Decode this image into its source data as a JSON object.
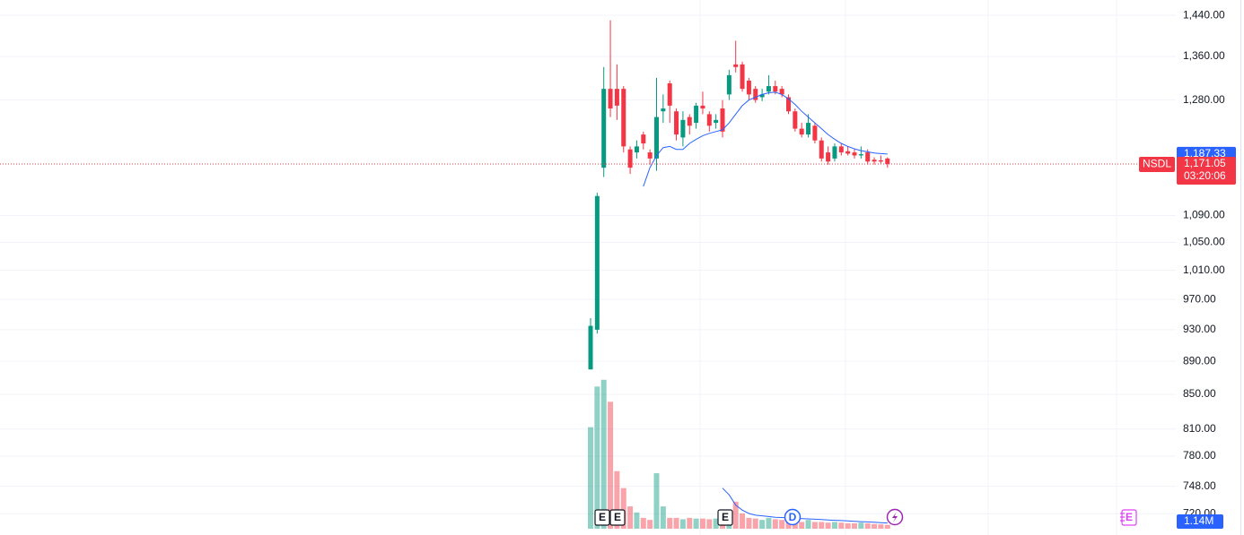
{
  "chart_data": {
    "type": "candlestick",
    "symbol": "NSDL",
    "log_scale": true,
    "grid": true,
    "up_color": "#089981",
    "down_color": "#f23645",
    "ma_color": "#2962ff",
    "ylim": [
      699,
      1471
    ],
    "yticks": [
      {
        "value": 1440,
        "label": "1,440.00"
      },
      {
        "value": 1360,
        "label": "1,360.00"
      },
      {
        "value": 1280,
        "label": "1,280.00"
      },
      {
        "value": 1090,
        "label": "1,090.00"
      },
      {
        "value": 1050,
        "label": "1,050.00"
      },
      {
        "value": 1010,
        "label": "1,010.00"
      },
      {
        "value": 970,
        "label": "970.00"
      },
      {
        "value": 930,
        "label": "930.00"
      },
      {
        "value": 890,
        "label": "890.00"
      },
      {
        "value": 850,
        "label": "850.00"
      },
      {
        "value": 810,
        "label": "810.00"
      },
      {
        "value": 780,
        "label": "780.00"
      },
      {
        "value": 748,
        "label": "748.00"
      },
      {
        "value": 720,
        "label": "720.00"
      }
    ],
    "open": [
      880,
      930,
      1165,
      1300,
      1300,
      1300,
      1195,
      1190,
      1220,
      1190,
      1180,
      1260,
      1310,
      1260,
      1215,
      1250,
      1240,
      1270,
      1255,
      1240,
      1265,
      1290,
      1345,
      1345,
      1315,
      1300,
      1285,
      1295,
      1305,
      1300,
      1285,
      1260,
      1230,
      1220,
      1235,
      1210,
      1190,
      1180,
      1200,
      1192,
      1190,
      1185,
      1190,
      1178,
      1177,
      1180
    ],
    "high": [
      945,
      1125,
      1340,
      1430,
      1345,
      1305,
      1200,
      1210,
      1225,
      1195,
      1320,
      1290,
      1315,
      1265,
      1260,
      1255,
      1275,
      1295,
      1260,
      1255,
      1280,
      1335,
      1390,
      1350,
      1320,
      1305,
      1300,
      1325,
      1315,
      1305,
      1290,
      1265,
      1240,
      1255,
      1240,
      1215,
      1200,
      1205,
      1205,
      1200,
      1195,
      1200,
      1195,
      1182,
      1185,
      1182
    ],
    "low": [
      880,
      925,
      1150,
      1250,
      1245,
      1190,
      1155,
      1180,
      1195,
      1170,
      1160,
      1240,
      1240,
      1210,
      1200,
      1220,
      1230,
      1255,
      1225,
      1230,
      1215,
      1280,
      1330,
      1295,
      1280,
      1275,
      1278,
      1290,
      1290,
      1285,
      1255,
      1225,
      1215,
      1215,
      1205,
      1175,
      1170,
      1175,
      1185,
      1185,
      1180,
      1180,
      1170,
      1170,
      1172,
      1165
    ],
    "close": [
      935,
      1120,
      1300,
      1265,
      1270,
      1200,
      1165,
      1200,
      1205,
      1180,
      1250,
      1265,
      1270,
      1220,
      1245,
      1235,
      1270,
      1265,
      1235,
      1245,
      1225,
      1325,
      1340,
      1300,
      1290,
      1280,
      1290,
      1305,
      1295,
      1290,
      1260,
      1230,
      1220,
      1240,
      1210,
      1180,
      1175,
      1200,
      1190,
      1188,
      1185,
      1187,
      1175,
      1175,
      1175,
      1171.05
    ],
    "ma": [
      null,
      null,
      null,
      null,
      null,
      null,
      null,
      null,
      1135,
      1165,
      1185,
      1198,
      1200,
      1195,
      1195,
      1205,
      1212,
      1218,
      1222,
      1225,
      1228,
      1240,
      1255,
      1270,
      1280,
      1285,
      1290,
      1293,
      1294,
      1290,
      1282,
      1272,
      1260,
      1250,
      1240,
      1230,
      1220,
      1212,
      1205,
      1200,
      1196,
      1193,
      1191,
      1189,
      1188,
      1187.33
    ],
    "ma_label": "1,187.33",
    "last_price_label": "1,171.05",
    "countdown": "03:20:06",
    "volume": [
      30,
      42,
      44,
      37.5,
      17,
      12,
      6.6,
      4.8,
      3.2,
      2.6,
      16.4,
      6.6,
      3.2,
      3.2,
      2.8,
      3.2,
      3,
      3,
      2.8,
      3,
      2.6,
      4.5,
      8,
      4.5,
      3.2,
      3,
      2.6,
      3.2,
      2.8,
      2.6,
      2.6,
      2.2,
      2,
      2.6,
      2,
      2,
      1.8,
      2,
      1.8,
      1.6,
      1.6,
      1.8,
      1.6,
      1.4,
      1.3,
      1.14
    ],
    "volume_ma": [
      null,
      null,
      null,
      null,
      null,
      null,
      null,
      null,
      null,
      null,
      null,
      null,
      null,
      null,
      null,
      null,
      null,
      null,
      null,
      null,
      12,
      10,
      7,
      5.5,
      4.5,
      4,
      3.8,
      3.6,
      3.4,
      3.3,
      3.2,
      3.1,
      3,
      2.9,
      2.8,
      2.7,
      2.6,
      2.5,
      2.4,
      2.3,
      2.2,
      2.1,
      2,
      1.9,
      1.8,
      1.7
    ],
    "vlim": [
      0,
      45
    ],
    "volume_label": "1.14M",
    "events": [
      "E",
      "E",
      "E",
      "D",
      "E"
    ]
  }
}
